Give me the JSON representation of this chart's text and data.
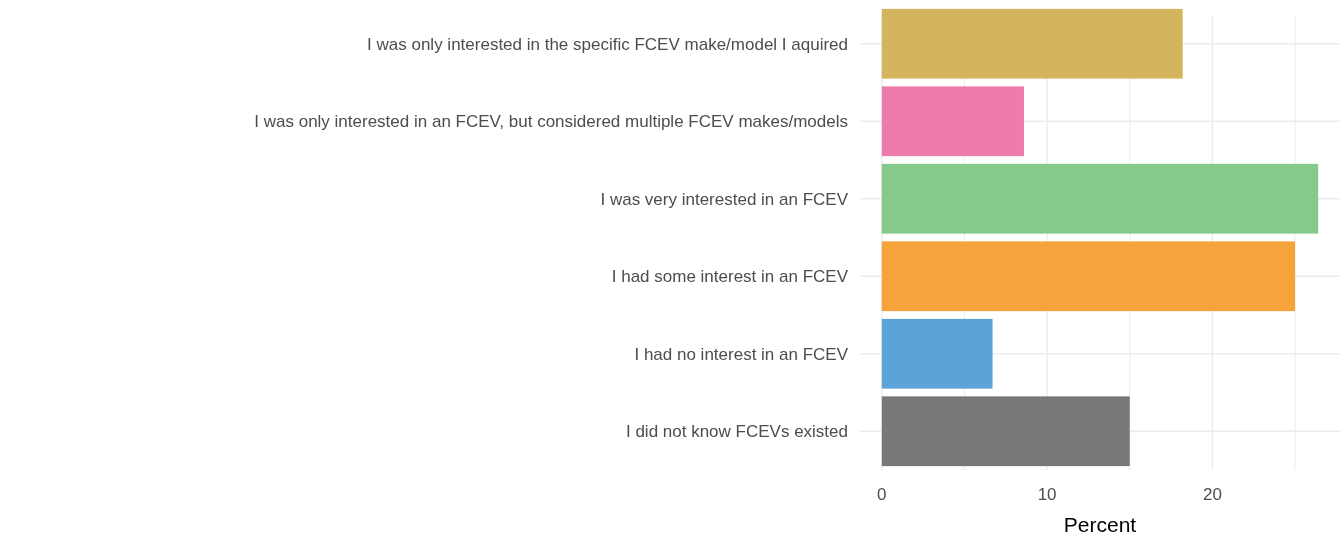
{
  "chart_data": {
    "type": "bar",
    "orientation": "horizontal",
    "xlabel": "Percent",
    "categories": [
      "I was only interested in the specific FCEV make/model I aquired",
      "I was only interested in an FCEV, but considered multiple FCEV makes/models",
      "I was very interested in an FCEV",
      "I had some interest in an FCEV",
      "I had no interest in an FCEV",
      "I did not know FCEVs existed"
    ],
    "values": [
      18.2,
      8.6,
      26.4,
      25.0,
      6.7,
      15.0
    ],
    "colors": [
      "#d4b45c",
      "#ef7bad",
      "#85c98b",
      "#f7a33b",
      "#5ba3d9",
      "#787878"
    ],
    "xlim": [
      -1.32,
      27.72
    ],
    "xticks": [
      0,
      {
        "value": 5,
        "label": null
      },
      10,
      {
        "value": 15,
        "label": null
      },
      20,
      {
        "value": 25,
        "label": null
      }
    ],
    "grid": true
  }
}
